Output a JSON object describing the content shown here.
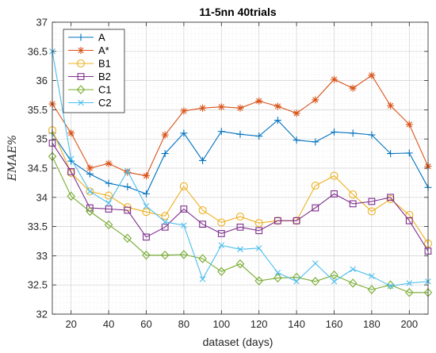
{
  "chart_data": {
    "type": "line",
    "title": "11-5nn 40trials",
    "xlabel": "dataset (days)",
    "ylabel": "EMAE%",
    "xlim": [
      10,
      210
    ],
    "ylim": [
      32,
      37
    ],
    "xticks": [
      20,
      40,
      60,
      80,
      100,
      120,
      140,
      160,
      180,
      200
    ],
    "yticks": [
      32,
      32.5,
      33,
      33.5,
      34,
      34.5,
      35,
      35.5,
      36,
      36.5,
      37
    ],
    "grid": true,
    "legend_position": "top-left",
    "x": [
      10,
      20,
      30,
      40,
      50,
      60,
      70,
      80,
      90,
      100,
      110,
      120,
      130,
      140,
      150,
      160,
      170,
      180,
      190,
      200,
      210
    ],
    "series": [
      {
        "name": "A",
        "color": "#0072BD",
        "marker": "plus",
        "values": [
          35.1,
          34.62,
          34.4,
          34.24,
          34.18,
          34.06,
          34.75,
          35.1,
          34.63,
          35.13,
          35.08,
          35.05,
          35.32,
          34.98,
          34.95,
          35.12,
          35.1,
          35.07,
          34.75,
          34.76,
          34.17
        ]
      },
      {
        "name": "A*",
        "color": "#D95319",
        "marker": "asterisk",
        "values": [
          35.6,
          35.1,
          34.5,
          34.58,
          34.43,
          34.37,
          35.07,
          35.48,
          35.53,
          35.55,
          35.53,
          35.65,
          35.56,
          35.44,
          35.67,
          36.02,
          35.87,
          36.09,
          35.57,
          35.25,
          34.53
        ]
      },
      {
        "name": "B1",
        "color": "#EDB120",
        "marker": "circle",
        "values": [
          35.15,
          34.42,
          34.1,
          34.03,
          33.83,
          33.75,
          33.68,
          34.19,
          33.78,
          33.57,
          33.67,
          33.56,
          33.6,
          33.6,
          34.2,
          34.37,
          34.05,
          33.76,
          33.97,
          33.7,
          33.21
        ]
      },
      {
        "name": "B2",
        "color": "#7E2F8E",
        "marker": "square",
        "values": [
          34.93,
          34.44,
          33.82,
          33.8,
          33.78,
          33.32,
          33.49,
          33.8,
          33.54,
          33.38,
          33.49,
          33.43,
          33.6,
          33.6,
          33.82,
          34.06,
          33.89,
          33.93,
          34.0,
          33.6,
          33.08
        ]
      },
      {
        "name": "C1",
        "color": "#77AC30",
        "marker": "diamond",
        "values": [
          34.7,
          34.02,
          33.76,
          33.53,
          33.3,
          33.01,
          33.01,
          33.02,
          32.95,
          32.73,
          32.86,
          32.57,
          32.62,
          32.63,
          32.56,
          32.67,
          32.53,
          32.42,
          32.5,
          32.37,
          32.37
        ]
      },
      {
        "name": "C2",
        "color": "#4DBEEE",
        "marker": "x",
        "values": [
          36.5,
          34.66,
          34.1,
          33.9,
          34.45,
          33.85,
          33.58,
          33.52,
          32.6,
          33.18,
          33.11,
          33.13,
          32.71,
          32.56,
          32.87,
          32.56,
          32.77,
          32.65,
          32.48,
          32.53,
          32.56
        ]
      }
    ]
  }
}
